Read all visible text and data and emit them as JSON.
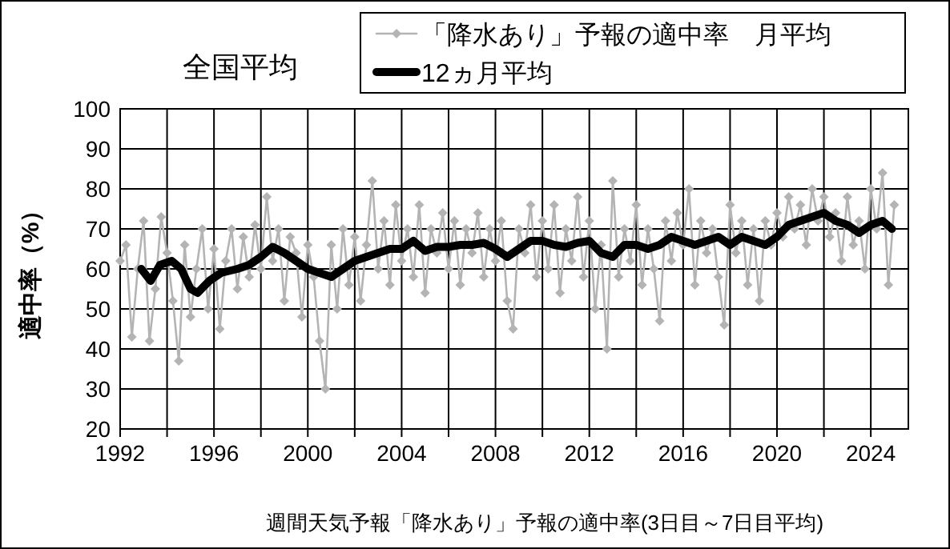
{
  "chart_data": {
    "type": "line",
    "title": "全国平均",
    "ylabel": "適中率（%）",
    "annotations": [
      "週間天気予報「降水あり」予報の適中率(3日目～7日目平均)"
    ],
    "xlim": [
      1992,
      2025.6
    ],
    "xticks": [
      1992,
      {
        "value": 1994,
        "label": null
      },
      1996,
      {
        "value": 1998,
        "label": null
      },
      2000,
      {
        "value": 2002,
        "label": null
      },
      2004,
      {
        "value": 2006,
        "label": null
      },
      2008,
      {
        "value": 2010,
        "label": null
      },
      2012,
      {
        "value": 2014,
        "label": null
      },
      2016,
      {
        "value": 2018,
        "label": null
      },
      2020,
      {
        "value": 2022,
        "label": null
      },
      2024
    ],
    "ylim": [
      20,
      100
    ],
    "yticks": [
      20,
      30,
      40,
      50,
      60,
      70,
      80,
      90,
      100
    ],
    "grid": true,
    "legend": "top right",
    "line_style": "solid",
    "series": [
      {
        "name": "「降水あり」予報の適中率　月平均",
        "color": "#b4b4b4",
        "marker": "diamond",
        "x": [
          1992.0,
          1992.25,
          1992.5,
          1992.75,
          1993.0,
          1993.25,
          1993.5,
          1993.75,
          1994.0,
          1994.25,
          1994.5,
          1994.75,
          1995.0,
          1995.25,
          1995.5,
          1995.75,
          1996.0,
          1996.25,
          1996.5,
          1996.75,
          1997.0,
          1997.25,
          1997.5,
          1997.75,
          1998.0,
          1998.25,
          1998.5,
          1998.75,
          1999.0,
          1999.25,
          1999.5,
          1999.75,
          2000.0,
          2000.25,
          2000.5,
          2000.75,
          2001.0,
          2001.25,
          2001.5,
          2001.75,
          2002.0,
          2002.25,
          2002.5,
          2002.75,
          2003.0,
          2003.25,
          2003.5,
          2003.75,
          2004.0,
          2004.25,
          2004.5,
          2004.75,
          2005.0,
          2005.25,
          2005.5,
          2005.75,
          2006.0,
          2006.25,
          2006.5,
          2006.75,
          2007.0,
          2007.25,
          2007.5,
          2007.75,
          2008.0,
          2008.25,
          2008.5,
          2008.75,
          2009.0,
          2009.25,
          2009.5,
          2009.75,
          2010.0,
          2010.25,
          2010.5,
          2010.75,
          2011.0,
          2011.25,
          2011.5,
          2011.75,
          2012.0,
          2012.25,
          2012.5,
          2012.75,
          2013.0,
          2013.25,
          2013.5,
          2013.75,
          2014.0,
          2014.25,
          2014.5,
          2014.75,
          2015.0,
          2015.25,
          2015.5,
          2015.75,
          2016.0,
          2016.25,
          2016.5,
          2016.75,
          2017.0,
          2017.25,
          2017.5,
          2017.75,
          2018.0,
          2018.25,
          2018.5,
          2018.75,
          2019.0,
          2019.25,
          2019.5,
          2019.75,
          2020.0,
          2020.25,
          2020.5,
          2020.75,
          2021.0,
          2021.25,
          2021.5,
          2021.75,
          2022.0,
          2022.25,
          2022.5,
          2022.75,
          2023.0,
          2023.25,
          2023.5,
          2023.75,
          2024.0,
          2024.25,
          2024.5,
          2024.75,
          2025.0
        ],
        "values": [
          62,
          66,
          43,
          60,
          72,
          42,
          55,
          73,
          64,
          52,
          37,
          66,
          48,
          60,
          70,
          50,
          65,
          45,
          62,
          70,
          55,
          68,
          58,
          71,
          60,
          78,
          62,
          70,
          52,
          68,
          64,
          48,
          66,
          58,
          42,
          30,
          66,
          50,
          70,
          56,
          68,
          52,
          66,
          82,
          60,
          72,
          56,
          76,
          62,
          70,
          58,
          76,
          54,
          70,
          64,
          74,
          60,
          72,
          56,
          70,
          64,
          74,
          58,
          70,
          62,
          72,
          52,
          45,
          70,
          64,
          76,
          58,
          72,
          60,
          76,
          54,
          70,
          62,
          78,
          58,
          72,
          50,
          66,
          40,
          82,
          58,
          70,
          62,
          76,
          56,
          70,
          60,
          47,
          72,
          62,
          74,
          66,
          80,
          56,
          72,
          64,
          70,
          58,
          46,
          76,
          64,
          72,
          56,
          70,
          52,
          72,
          66,
          74,
          68,
          78,
          70,
          76,
          66,
          80,
          72,
          78,
          68,
          74,
          62,
          78,
          66,
          72,
          60,
          80,
          70,
          84,
          56,
          76
        ]
      },
      {
        "name": "12ヵ月平均",
        "color": "#000000",
        "marker": "none",
        "x": [
          1992.9,
          1993.3,
          1993.7,
          1994.2,
          1994.6,
          1995.0,
          1995.3,
          1995.8,
          1996.3,
          1997.0,
          1997.5,
          1998.0,
          1998.5,
          1999.0,
          1999.5,
          2000.0,
          2000.5,
          2001.0,
          2001.5,
          2002.0,
          2002.5,
          2003.0,
          2003.5,
          2004.0,
          2004.5,
          2005.0,
          2005.5,
          2006.0,
          2006.5,
          2007.0,
          2007.5,
          2008.0,
          2008.5,
          2009.0,
          2009.5,
          2010.0,
          2010.5,
          2011.0,
          2011.5,
          2012.0,
          2012.5,
          2013.0,
          2013.5,
          2014.0,
          2014.5,
          2015.0,
          2015.5,
          2016.0,
          2016.5,
          2017.0,
          2017.5,
          2018.0,
          2018.5,
          2019.0,
          2019.5,
          2020.0,
          2020.5,
          2021.0,
          2021.5,
          2022.0,
          2022.5,
          2023.0,
          2023.5,
          2024.0,
          2024.5,
          2024.9
        ],
        "values": [
          60,
          57,
          61,
          62,
          60,
          55,
          54,
          57,
          59,
          60,
          61,
          63,
          65.5,
          64,
          62,
          60,
          59,
          58,
          60,
          62,
          63,
          64,
          65,
          65,
          67,
          64.5,
          65.5,
          65.5,
          66,
          66,
          66.5,
          65,
          63,
          65,
          67,
          67,
          66,
          65.5,
          66.5,
          67,
          64,
          63,
          66,
          66,
          65,
          66,
          68,
          67,
          66,
          67,
          68,
          66,
          68,
          67,
          66,
          68,
          71,
          72,
          73,
          74,
          72,
          71,
          69,
          71,
          72,
          70
        ]
      }
    ]
  }
}
